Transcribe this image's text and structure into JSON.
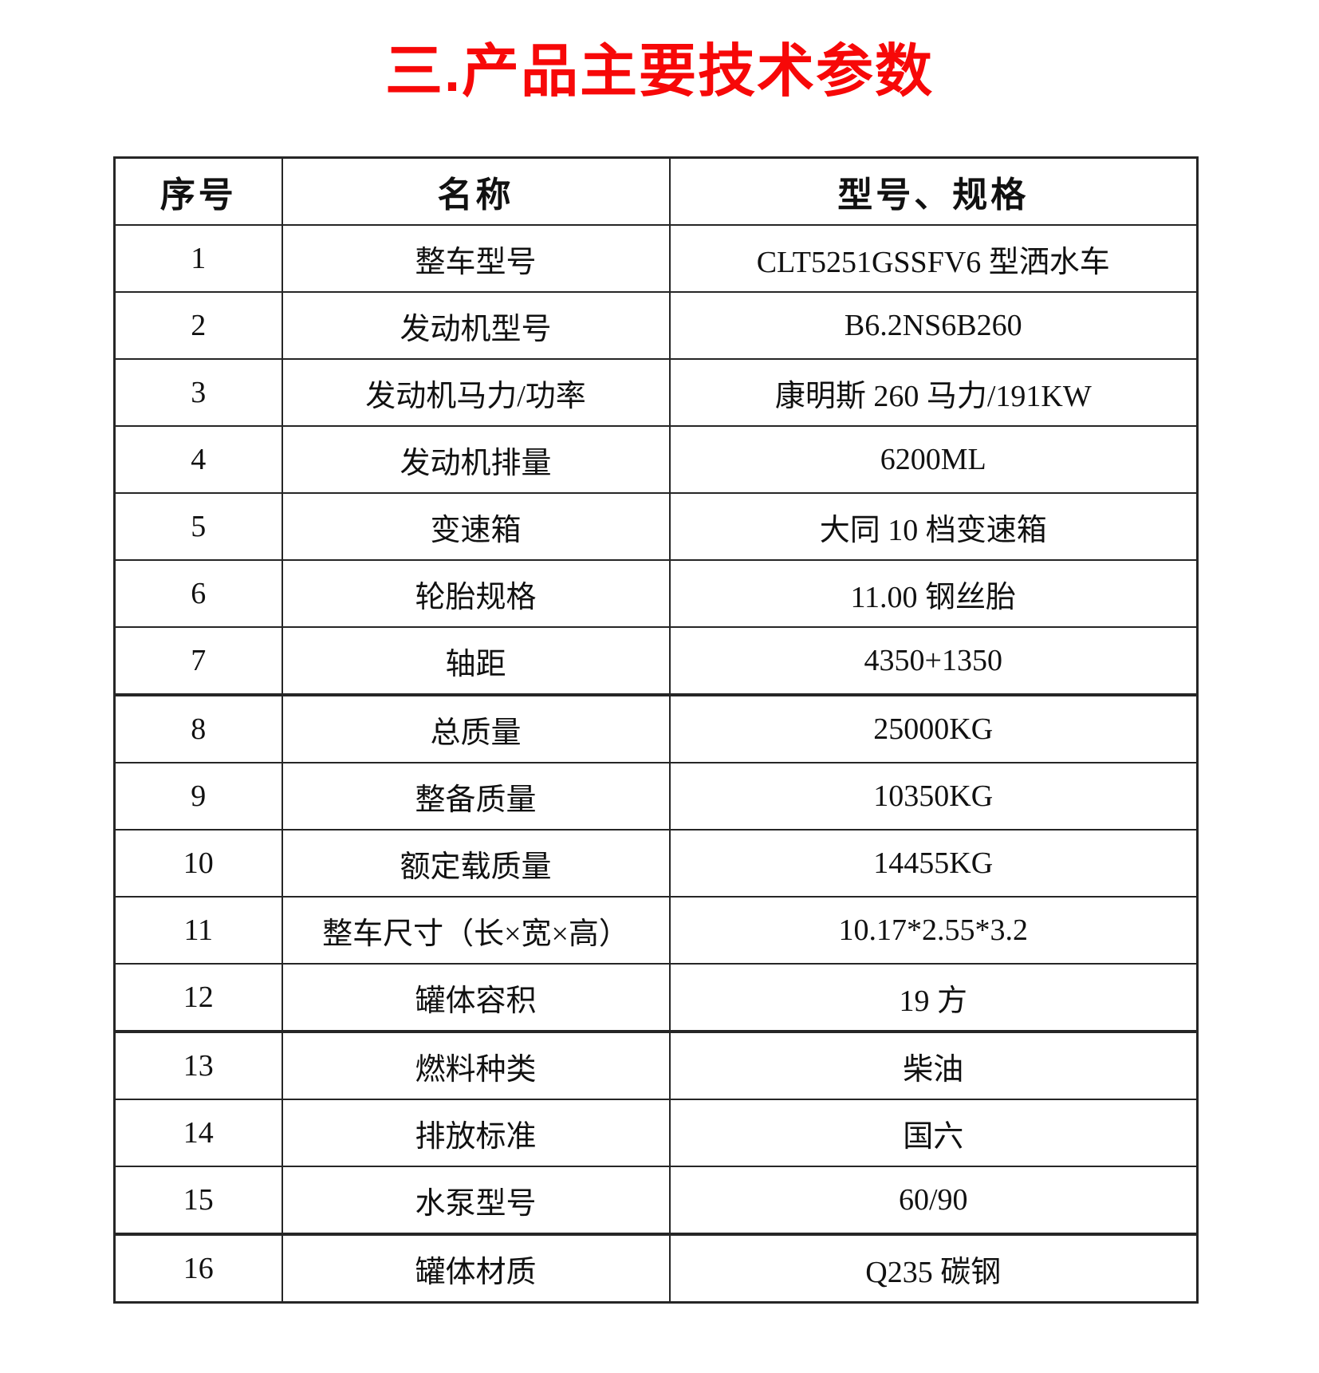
{
  "title": "三.产品主要技术参数",
  "title_color": "#f70808",
  "table": {
    "headers": [
      "序号",
      "名称",
      "型号、规格"
    ],
    "rows": [
      [
        "1",
        "整车型号",
        "CLT5251GSSFV6 型洒水车"
      ],
      [
        "2",
        "发动机型号",
        "B6.2NS6B260"
      ],
      [
        "3",
        "发动机马力/功率",
        "康明斯 260 马力/191KW"
      ],
      [
        "4",
        "发动机排量",
        "6200ML"
      ],
      [
        "5",
        "变速箱",
        "大同 10 档变速箱"
      ],
      [
        "6",
        "轮胎规格",
        "11.00 钢丝胎"
      ],
      [
        "7",
        "轴距",
        "4350+1350"
      ],
      [
        "8",
        "总质量",
        "25000KG"
      ],
      [
        "9",
        "整备质量",
        "10350KG"
      ],
      [
        "10",
        "额定载质量",
        "14455KG"
      ],
      [
        "11",
        "整车尺寸（长×宽×高）",
        "10.17*2.55*3.2"
      ],
      [
        "12",
        "罐体容积",
        "19 方"
      ],
      [
        "13",
        "燃料种类",
        "柴油"
      ],
      [
        "14",
        "排放标准",
        "国六"
      ],
      [
        "15",
        "水泵型号",
        "60/90"
      ],
      [
        "16",
        "罐体材质",
        "Q235 碳钢"
      ]
    ]
  }
}
